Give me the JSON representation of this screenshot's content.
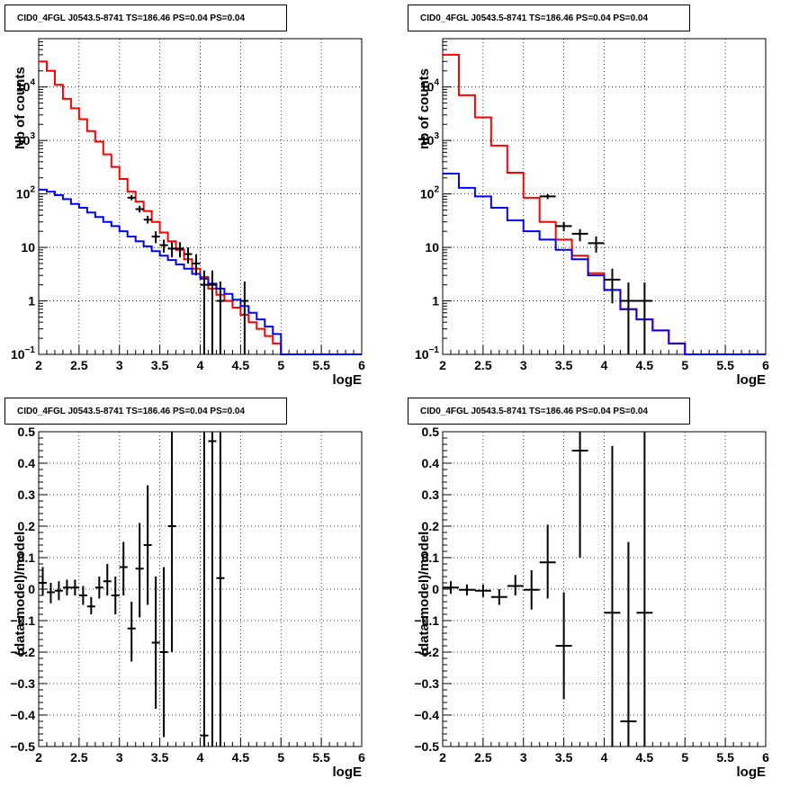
{
  "chart_data": [
    {
      "type": "line",
      "title": "CID0_4FGL J0543.5-8741 TS=186.46 PS=0.04 PS=0.04",
      "xlabel": "logE",
      "ylabel": "Nb of counts",
      "xlim": [
        2,
        6
      ],
      "ylim": [
        0.1,
        80000
      ],
      "log_y": true,
      "grid": true,
      "y_ticks": [
        {
          "v": 0.1,
          "b": "10",
          "e": "−1"
        },
        {
          "v": 1,
          "b": "1",
          "e": ""
        },
        {
          "v": 10,
          "b": "10",
          "e": ""
        },
        {
          "v": 100,
          "b": "10",
          "e": "2"
        },
        {
          "v": 1000,
          "b": "10",
          "e": "3"
        },
        {
          "v": 10000,
          "b": "10",
          "e": "4"
        }
      ],
      "x_ticks": [
        "2",
        "2.5",
        "3",
        "3.5",
        "4",
        "4.5",
        "5",
        "5.5",
        "6"
      ],
      "bin_edges": [
        2,
        2.1,
        2.2,
        2.3,
        2.4,
        2.5,
        2.6,
        2.7,
        2.8,
        2.9,
        3,
        3.1,
        3.2,
        3.3,
        3.4,
        3.5,
        3.6,
        3.7,
        3.8,
        3.9,
        4,
        4.1,
        4.2,
        4.3,
        4.4,
        4.5,
        4.6,
        4.7,
        4.8,
        4.9,
        5,
        5.1,
        5.2,
        5.3,
        5.4,
        5.5,
        5.6,
        5.7,
        5.8,
        5.9,
        6
      ],
      "series": [
        {
          "name": "",
          "color": "#ff0000",
          "style": "hist",
          "values": [
            30000,
            20000,
            11000,
            6000,
            4000,
            2500,
            1500,
            950,
            550,
            320,
            190,
            110,
            72,
            48,
            30,
            19,
            13,
            9,
            6,
            4,
            2.8,
            1.7,
            1.3,
            1.0,
            0.75,
            0.55,
            0.4,
            0.3,
            0.22,
            0.16,
            0.1,
            0.1,
            0.1,
            0.1,
            0.1,
            0.1,
            0.1,
            0.1,
            0.1,
            0.1
          ]
        },
        {
          "name": "",
          "color": "#0000ff",
          "style": "hist",
          "values": [
            120,
            110,
            95,
            80,
            65,
            55,
            45,
            37,
            30,
            25,
            20,
            16,
            13,
            10.5,
            8.5,
            7,
            5.8,
            4.8,
            4,
            3.2,
            2.6,
            2.1,
            1.7,
            1.35,
            1.05,
            0.8,
            0.6,
            0.45,
            0.33,
            0.24,
            0.1,
            0.1,
            0.1,
            0.1,
            0.1,
            0.1,
            0.1,
            0.1,
            0.1,
            0.1
          ]
        },
        {
          "name": "",
          "color": "#000000",
          "style": "points",
          "points": [
            {
              "x": 3.15,
              "y": 85,
              "lo": 76,
              "hi": 95
            },
            {
              "x": 3.25,
              "y": 52,
              "lo": 45,
              "hi": 60
            },
            {
              "x": 3.35,
              "y": 33,
              "lo": 28,
              "hi": 39
            },
            {
              "x": 3.45,
              "y": 16,
              "lo": 12,
              "hi": 20
            },
            {
              "x": 3.55,
              "y": 11,
              "lo": 8,
              "hi": 14
            },
            {
              "x": 3.65,
              "y": 9.5,
              "lo": 6.5,
              "hi": 12.5
            },
            {
              "x": 3.75,
              "y": 9.5,
              "lo": 6.5,
              "hi": 12.5
            },
            {
              "x": 3.85,
              "y": 7.5,
              "lo": 5,
              "hi": 10
            },
            {
              "x": 3.95,
              "y": 5,
              "lo": 3,
              "hi": 7.5
            },
            {
              "x": 4.05,
              "y": 2,
              "lo": 0.1,
              "hi": 3.7
            },
            {
              "x": 4.15,
              "y": 2,
              "lo": 0.1,
              "hi": 3.7
            },
            {
              "x": 4.25,
              "y": 1,
              "lo": 0.1,
              "hi": 2.3
            },
            {
              "x": 4.55,
              "y": 1,
              "lo": 0.1,
              "hi": 2.3
            }
          ]
        }
      ]
    },
    {
      "type": "line",
      "title": "CID0_4FGL J0543.5-8741 TS=186.46 PS=0.04 PS=0.04",
      "xlabel": "logE",
      "ylabel": "nb of counts",
      "xlim": [
        2,
        6
      ],
      "ylim": [
        0.1,
        80000
      ],
      "log_y": true,
      "grid": true,
      "y_ticks": [
        {
          "v": 0.1,
          "b": "10",
          "e": "−1"
        },
        {
          "v": 1,
          "b": "1",
          "e": ""
        },
        {
          "v": 10,
          "b": "10",
          "e": ""
        },
        {
          "v": 100,
          "b": "10",
          "e": "2"
        },
        {
          "v": 1000,
          "b": "10",
          "e": "3"
        },
        {
          "v": 10000,
          "b": "10",
          "e": "4"
        }
      ],
      "x_ticks": [
        "2",
        "2.5",
        "3",
        "3.5",
        "4",
        "4.5",
        "5",
        "5.5",
        "6"
      ],
      "bin_edges": [
        2,
        2.2,
        2.4,
        2.6,
        2.8,
        3,
        3.2,
        3.4,
        3.6,
        3.8,
        4,
        4.2,
        4.4,
        4.6,
        4.8,
        5,
        5.2,
        5.4,
        5.6,
        5.8,
        6
      ],
      "series": [
        {
          "name": "",
          "color": "#ff0000",
          "style": "hist",
          "values": [
            40000,
            7000,
            2700,
            800,
            250,
            85,
            30,
            14,
            7,
            3.3,
            1.6,
            0.7,
            0.45,
            0.28,
            0.16,
            0.1,
            0.1,
            0.1,
            0.1,
            0.1
          ]
        },
        {
          "name": "",
          "color": "#0000ff",
          "style": "hist",
          "values": [
            240,
            130,
            90,
            55,
            32,
            20,
            14,
            9,
            6,
            3,
            1.6,
            0.7,
            0.45,
            0.28,
            0.16,
            0.1,
            0.1,
            0.1,
            0.1,
            0.1
          ]
        },
        {
          "name": "",
          "color": "#000000",
          "style": "points",
          "points": [
            {
              "x": 3.3,
              "y": 90,
              "lo": 80,
              "hi": 100
            },
            {
              "x": 3.5,
              "y": 25,
              "lo": 20,
              "hi": 30
            },
            {
              "x": 3.7,
              "y": 18,
              "lo": 13,
              "hi": 22
            },
            {
              "x": 3.9,
              "y": 12,
              "lo": 8,
              "hi": 16
            },
            {
              "x": 4.1,
              "y": 2.5,
              "lo": 0.9,
              "hi": 4
            },
            {
              "x": 4.3,
              "y": 1,
              "lo": 0.1,
              "hi": 2.2
            },
            {
              "x": 4.5,
              "y": 1,
              "lo": 0.1,
              "hi": 2.2
            }
          ]
        }
      ]
    },
    {
      "type": "scatter",
      "title": "CID0_4FGL J0543.5-8741 TS=186.46 PS=0.04 PS=0.04",
      "xlabel": "logE",
      "ylabel": "(data-model)/model",
      "xlim": [
        2,
        6
      ],
      "ylim": [
        -0.5,
        0.5
      ],
      "log_y": false,
      "grid": true,
      "y_ticks": [
        {
          "v": -0.5,
          "b": "−0.5",
          "e": ""
        },
        {
          "v": -0.4,
          "b": "−0.4",
          "e": ""
        },
        {
          "v": -0.3,
          "b": "−0.3",
          "e": ""
        },
        {
          "v": -0.2,
          "b": "−0.2",
          "e": ""
        },
        {
          "v": -0.1,
          "b": "−0.1",
          "e": ""
        },
        {
          "v": 0,
          "b": "0",
          "e": ""
        },
        {
          "v": 0.1,
          "b": "0.1",
          "e": ""
        },
        {
          "v": 0.2,
          "b": "0.2",
          "e": ""
        },
        {
          "v": 0.3,
          "b": "0.3",
          "e": ""
        },
        {
          "v": 0.4,
          "b": "0.4",
          "e": ""
        },
        {
          "v": 0.5,
          "b": "0.5",
          "e": ""
        }
      ],
      "x_ticks": [
        "2",
        "2.5",
        "3",
        "3.5",
        "4",
        "4.5",
        "5",
        "5.5",
        "6"
      ],
      "bin_width": 0.1,
      "series": [
        {
          "name": "",
          "color": "#000000",
          "style": "points",
          "points": [
            {
              "x": 2.05,
              "y": 0.02,
              "lo": -0.02,
              "hi": 0.07
            },
            {
              "x": 2.15,
              "y": -0.01,
              "lo": -0.045,
              "hi": 0.02
            },
            {
              "x": 2.25,
              "y": -0.005,
              "lo": -0.035,
              "hi": 0.025
            },
            {
              "x": 2.35,
              "y": 0.005,
              "lo": -0.02,
              "hi": 0.03
            },
            {
              "x": 2.45,
              "y": 0.005,
              "lo": -0.02,
              "hi": 0.03
            },
            {
              "x": 2.55,
              "y": -0.02,
              "lo": -0.05,
              "hi": 0.01
            },
            {
              "x": 2.65,
              "y": -0.055,
              "lo": -0.08,
              "hi": -0.025
            },
            {
              "x": 2.75,
              "y": 0.005,
              "lo": -0.03,
              "hi": 0.04
            },
            {
              "x": 2.85,
              "y": 0.025,
              "lo": -0.02,
              "hi": 0.08
            },
            {
              "x": 2.95,
              "y": -0.02,
              "lo": -0.08,
              "hi": 0.04
            },
            {
              "x": 3.05,
              "y": 0.07,
              "lo": -0.02,
              "hi": 0.15
            },
            {
              "x": 3.15,
              "y": -0.125,
              "lo": -0.23,
              "hi": -0.04
            },
            {
              "x": 3.25,
              "y": 0.065,
              "lo": -0.09,
              "hi": 0.21
            },
            {
              "x": 3.35,
              "y": 0.14,
              "lo": -0.05,
              "hi": 0.33
            },
            {
              "x": 3.45,
              "y": -0.17,
              "lo": -0.38,
              "hi": 0.04
            },
            {
              "x": 3.55,
              "y": -0.2,
              "lo": -0.47,
              "hi": 0.07
            },
            {
              "x": 3.65,
              "y": 0.2,
              "lo": -0.2,
              "hi": 0.5
            },
            {
              "x": 4.05,
              "y": -0.465,
              "lo": -0.5,
              "hi": 0.5
            },
            {
              "x": 4.15,
              "y": 0.47,
              "lo": -0.5,
              "hi": 0.5
            },
            {
              "x": 4.25,
              "y": 0.035,
              "lo": -0.5,
              "hi": 0.5
            }
          ]
        }
      ]
    },
    {
      "type": "scatter",
      "title": "CID0_4FGL J0543.5-8741 TS=186.46 PS=0.04 PS=0.04",
      "xlabel": "logE",
      "ylabel": "(data-model)/model",
      "xlim": [
        2,
        6
      ],
      "ylim": [
        -0.5,
        0.5
      ],
      "log_y": false,
      "grid": true,
      "y_ticks": [
        {
          "v": -0.5,
          "b": "−0.5",
          "e": ""
        },
        {
          "v": -0.4,
          "b": "−0.4",
          "e": ""
        },
        {
          "v": -0.3,
          "b": "−0.3",
          "e": ""
        },
        {
          "v": -0.2,
          "b": "−0.2",
          "e": ""
        },
        {
          "v": -0.1,
          "b": "−0.1",
          "e": ""
        },
        {
          "v": 0,
          "b": "0",
          "e": ""
        },
        {
          "v": 0.1,
          "b": "0.1",
          "e": ""
        },
        {
          "v": 0.2,
          "b": "0.2",
          "e": ""
        },
        {
          "v": 0.3,
          "b": "0.3",
          "e": ""
        },
        {
          "v": 0.4,
          "b": "0.4",
          "e": ""
        },
        {
          "v": 0.5,
          "b": "0.5",
          "e": ""
        }
      ],
      "x_ticks": [
        "2",
        "2.5",
        "3",
        "3.5",
        "4",
        "4.5",
        "5",
        "5.5",
        "6"
      ],
      "bin_width": 0.2,
      "series": [
        {
          "name": "",
          "color": "#000000",
          "style": "points",
          "points": [
            {
              "x": 2.1,
              "y": 0.005,
              "lo": -0.015,
              "hi": 0.025
            },
            {
              "x": 2.3,
              "y": -0.002,
              "lo": -0.02,
              "hi": 0.015
            },
            {
              "x": 2.5,
              "y": -0.005,
              "lo": -0.025,
              "hi": 0.015
            },
            {
              "x": 2.7,
              "y": -0.025,
              "lo": -0.05,
              "hi": 0.0
            },
            {
              "x": 2.9,
              "y": 0.01,
              "lo": -0.02,
              "hi": 0.045
            },
            {
              "x": 3.1,
              "y": -0.002,
              "lo": -0.065,
              "hi": 0.06
            },
            {
              "x": 3.3,
              "y": 0.085,
              "lo": -0.03,
              "hi": 0.205
            },
            {
              "x": 3.5,
              "y": -0.18,
              "lo": -0.35,
              "hi": -0.01
            },
            {
              "x": 3.7,
              "y": 0.44,
              "lo": 0.1,
              "hi": 0.5
            },
            {
              "x": 4.1,
              "y": -0.075,
              "lo": -0.5,
              "hi": 0.455
            },
            {
              "x": 4.3,
              "y": -0.42,
              "lo": -0.5,
              "hi": 0.15
            },
            {
              "x": 4.5,
              "y": -0.075,
              "lo": -0.5,
              "hi": 0.5
            }
          ]
        }
      ]
    }
  ]
}
